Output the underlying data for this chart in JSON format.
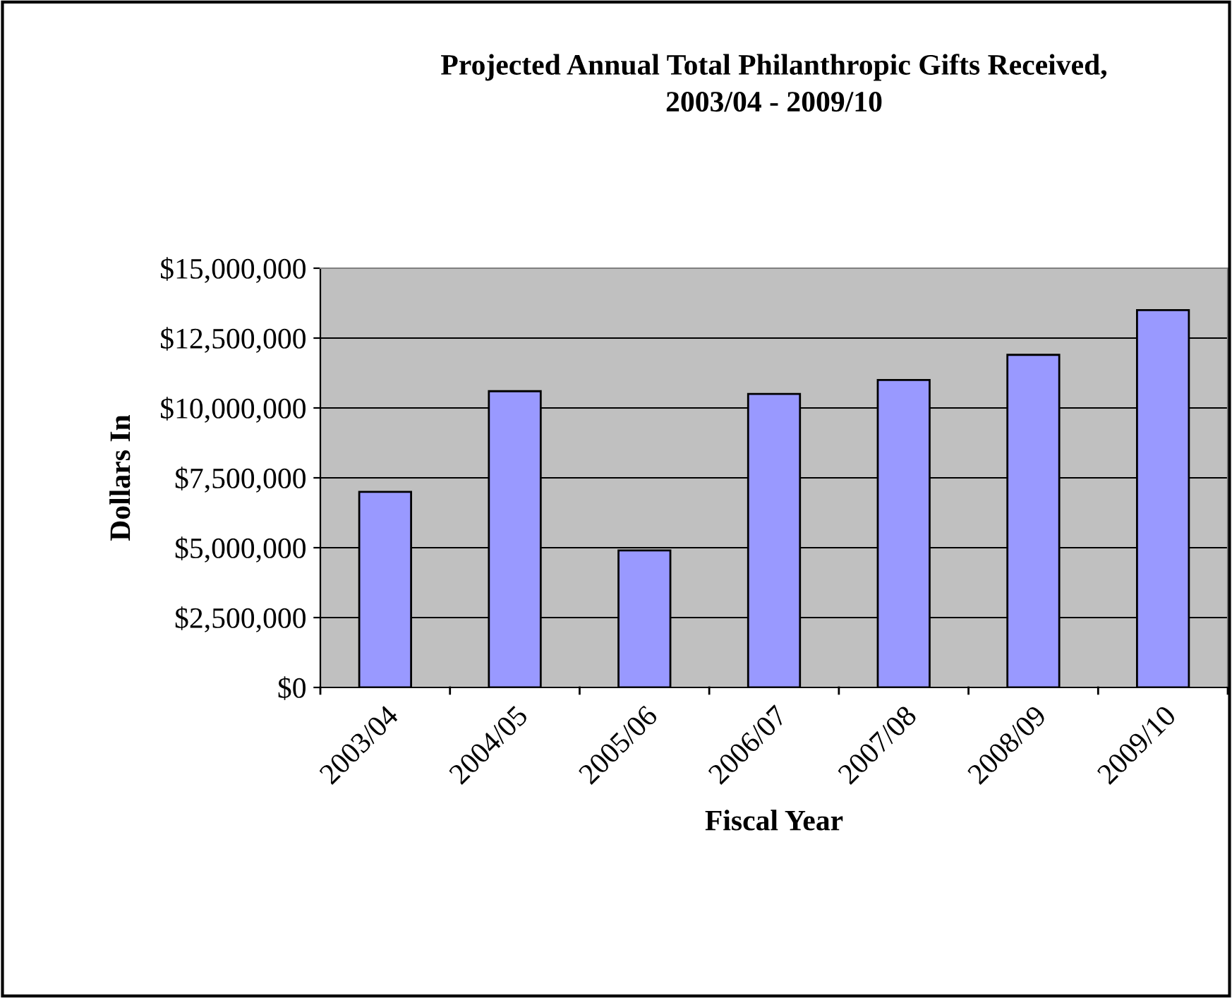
{
  "chart_data": {
    "type": "bar",
    "title": "Projected Annual Total Philanthropic Gifts Received,\n2003/04 - 2009/10",
    "xlabel": "Fiscal Year",
    "ylabel": "Dollars In",
    "categories": [
      "2003/04",
      "2004/05",
      "2005/06",
      "2006/07",
      "2007/08",
      "2008/09",
      "2009/10"
    ],
    "values": [
      7000000,
      10600000,
      4900000,
      10500000,
      11000000,
      11900000,
      13500000
    ],
    "color": "#9999ff",
    "ylim": [
      0,
      15000000
    ],
    "yticks": [
      {
        "value": 0,
        "label": "$0"
      },
      {
        "value": 2500000,
        "label": "$2,500,000"
      },
      {
        "value": 5000000,
        "label": "$5,000,000"
      },
      {
        "value": 7500000,
        "label": "$7,500,000"
      },
      {
        "value": 10000000,
        "label": "$10,000,000"
      },
      {
        "value": 12500000,
        "label": "$12,500,000"
      },
      {
        "value": 15000000,
        "label": "$15,000,000"
      }
    ],
    "grid": "y",
    "legend": false
  }
}
